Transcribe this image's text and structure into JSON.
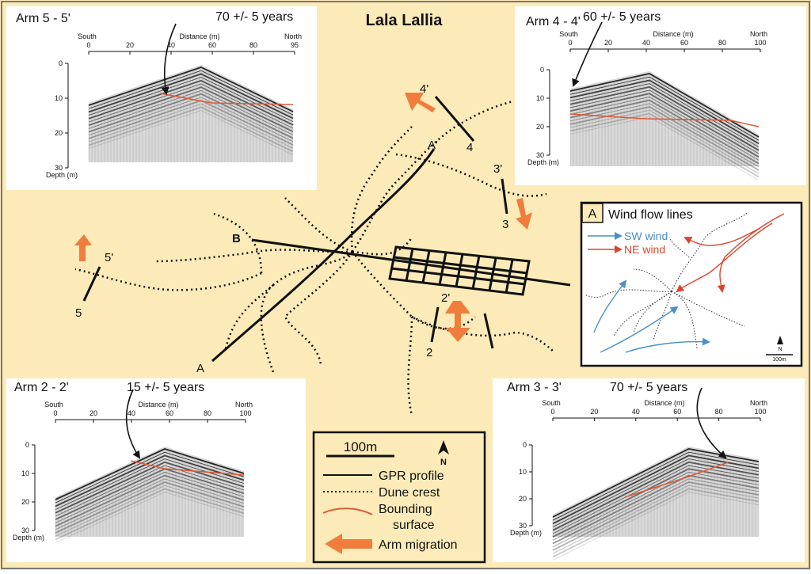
{
  "title": "Lala Lallia",
  "colors": {
    "background": "#fcebb9",
    "gpr": "#111111",
    "bounding": "#e05a3a",
    "arm_arrow": "#f07d3c",
    "sw_wind": "#4a8fc9",
    "ne_wind": "#d9452b"
  },
  "profiles": [
    {
      "id": "arm5",
      "title": "Arm 5 - 5'",
      "age": "70 +/- 5 years",
      "left_label": "South",
      "right_label": "North",
      "distance_label": "Distance (m)",
      "depth_label": "Depth (m)",
      "x_ticks": [
        "0",
        "20",
        "40",
        "60",
        "80",
        "95"
      ],
      "depth_ticks": [
        "0",
        "10",
        "20",
        "30"
      ]
    },
    {
      "id": "arm4",
      "title": "Arm 4 - 4'",
      "age": "60 +/- 5 years",
      "left_label": "South",
      "right_label": "North",
      "distance_label": "Distance (m)",
      "depth_label": "Depth (m)",
      "x_ticks": [
        "0",
        "20",
        "40",
        "60",
        "80",
        "100"
      ],
      "depth_ticks": [
        "0",
        "10",
        "20",
        "30"
      ]
    },
    {
      "id": "arm2",
      "title": "Arm 2 - 2'",
      "age": "15 +/- 5 years",
      "left_label": "South",
      "right_label": "North",
      "distance_label": "Distance (m)",
      "depth_label": "Depth (m)",
      "x_ticks": [
        "0",
        "20",
        "40",
        "60",
        "80",
        "100"
      ],
      "depth_ticks": [
        "0",
        "10",
        "20",
        "30"
      ]
    },
    {
      "id": "arm3",
      "title": "Arm 3 - 3'",
      "age": "70 +/- 5 years",
      "left_label": "South",
      "right_label": "North",
      "distance_label": "Distance (m)",
      "depth_label": "Depth (m)",
      "x_ticks": [
        "0",
        "20",
        "40",
        "60",
        "80",
        "100"
      ],
      "depth_ticks": [
        "0",
        "10",
        "20",
        "30"
      ]
    }
  ],
  "map_labels": {
    "a": "A",
    "a_prime": "A'",
    "b": "B",
    "arm4_start": "4",
    "arm4_end": "4'",
    "arm3_start": "3",
    "arm3_end": "3'",
    "arm5_start": "5",
    "arm5_end": "5'",
    "arm2_start": "2",
    "arm2_end": "2'"
  },
  "inset": {
    "letter": "A",
    "title": "Wind flow lines",
    "sw_label": "SW wind",
    "ne_label": "NE wind",
    "north": "N",
    "scale": "100m"
  },
  "legend": {
    "scale": "100m",
    "north": "N",
    "gpr": "GPR profile",
    "dune": "Dune crest",
    "bounding_1": "Bounding",
    "bounding_2": "surface",
    "migration": "Arm migration"
  }
}
